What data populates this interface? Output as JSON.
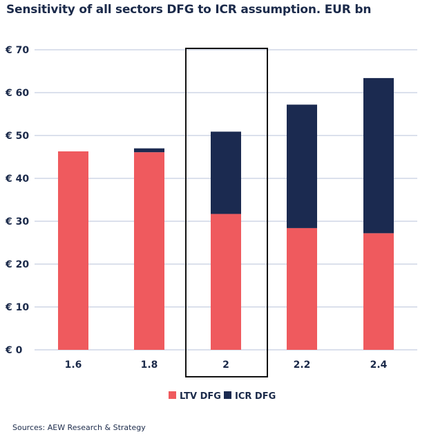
{
  "chart_data": {
    "type": "bar",
    "stacked": true,
    "title": "Sensitivity of all sectors DFG to ICR assumption. EUR bn",
    "categories": [
      "1.6",
      "1.8",
      "2",
      "2.2",
      "2.4"
    ],
    "series": [
      {
        "name": "LTV DFG",
        "color": "#ef5a5e",
        "values": [
          46.3,
          46.1,
          31.7,
          28.4,
          27.2
        ]
      },
      {
        "name": "ICR DFG",
        "color": "#1b2a50",
        "values": [
          0,
          0.9,
          19.2,
          28.8,
          36.2
        ]
      }
    ],
    "yticks": [
      "€ 0",
      "€ 10",
      "€ 20",
      "€ 30",
      "€ 40",
      "€ 50",
      "€ 60",
      "€ 70"
    ],
    "ylim": [
      0,
      70
    ],
    "grid": true,
    "highlighted_category": "2",
    "legend_position": "bottom"
  },
  "source": "Sources: AEW Research & Strategy"
}
